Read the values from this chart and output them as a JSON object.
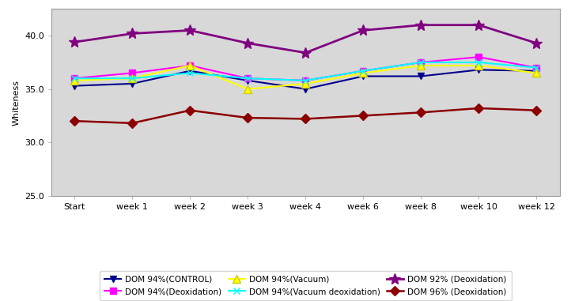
{
  "x_labels": [
    "Start",
    "week 1",
    "week 2",
    "week 3",
    "week 4",
    "week 6",
    "week 8",
    "week 10",
    "week 12"
  ],
  "series": [
    {
      "label": "DOM 94%(CONTROL)",
      "color": "#00008B",
      "marker": "v",
      "markersize": 6,
      "linewidth": 1.5,
      "zorder": 3,
      "values": [
        35.3,
        35.5,
        36.7,
        35.8,
        35.0,
        36.2,
        36.2,
        36.8,
        36.7
      ]
    },
    {
      "label": "DOM 94%(Deoxidation)",
      "color": "#FF00FF",
      "marker": "s",
      "markersize": 6,
      "linewidth": 1.5,
      "zorder": 3,
      "values": [
        36.0,
        36.5,
        37.2,
        36.0,
        35.8,
        36.7,
        37.5,
        38.0,
        37.0
      ]
    },
    {
      "label": "DOM 94%(Vacuum)",
      "color": "#FFFF00",
      "marker": "^",
      "markersize": 7,
      "linewidth": 1.5,
      "zorder": 3,
      "values": [
        35.8,
        36.0,
        37.2,
        35.0,
        35.5,
        36.5,
        37.2,
        37.2,
        36.5
      ]
    },
    {
      "label": "DOM 94%(Vacuum deoxidation)",
      "color": "#00FFFF",
      "marker": "x",
      "markersize": 6,
      "linewidth": 1.5,
      "zorder": 3,
      "values": [
        36.0,
        36.0,
        36.5,
        36.0,
        35.8,
        36.7,
        37.5,
        37.5,
        37.0
      ]
    },
    {
      "label": "DOM 92% (Deoxidation)",
      "color": "#800080",
      "marker": "*",
      "markersize": 10,
      "linewidth": 2.0,
      "zorder": 4,
      "values": [
        39.4,
        40.2,
        40.5,
        39.3,
        38.4,
        40.5,
        41.0,
        41.0,
        39.3
      ]
    },
    {
      "label": "DOM 96% (Deoxidation)",
      "color": "#8B0000",
      "marker": "D",
      "markersize": 6,
      "linewidth": 1.8,
      "zorder": 3,
      "values": [
        32.0,
        31.8,
        33.0,
        32.3,
        32.2,
        32.5,
        32.8,
        33.2,
        33.0
      ]
    }
  ],
  "ylabel": "Whiteness",
  "ylim": [
    25.0,
    42.5
  ],
  "yticks": [
    25.0,
    30.0,
    35.0,
    40.0
  ],
  "fig_bg_color": "#FFFFFF",
  "plot_bg_color": "#D8D8D8",
  "legend_fontsize": 7.5,
  "axis_fontsize": 8,
  "tick_fontsize": 8
}
